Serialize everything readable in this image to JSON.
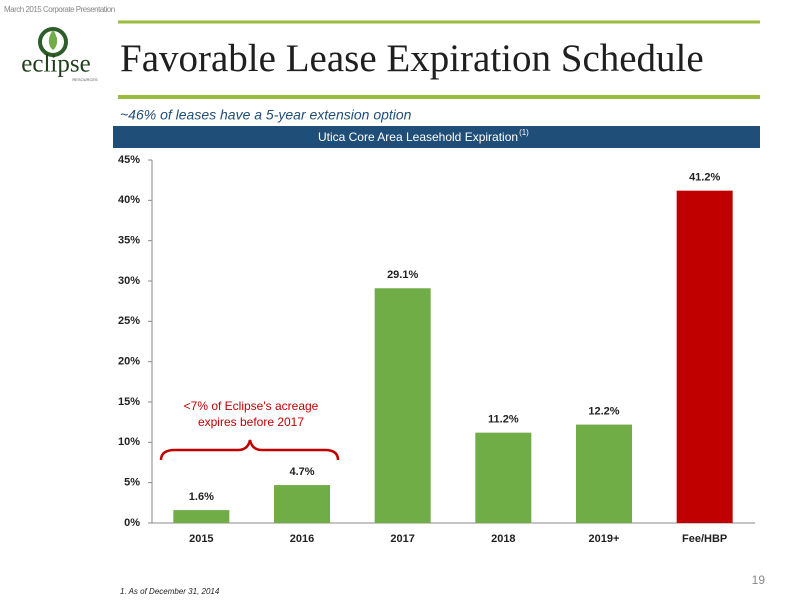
{
  "header": {
    "presentation": "March 2015 Corporate Presentation",
    "logo": "eclipse",
    "logo_sub": "RESOURCES",
    "title": "Favorable Lease Expiration Schedule",
    "subtitle": "~46% of leases have a 5-year extension option"
  },
  "chart_data": {
    "type": "bar",
    "title": "Utica Core Area Leasehold Expiration",
    "title_superscript": "(1)",
    "categories": [
      "2015",
      "2016",
      "2017",
      "2018",
      "2019+",
      "Fee/HBP"
    ],
    "values": [
      1.6,
      4.7,
      29.1,
      11.2,
      12.2,
      41.2
    ],
    "value_labels": [
      "1.6%",
      "4.7%",
      "29.1%",
      "11.2%",
      "12.2%",
      "41.2%"
    ],
    "colors": [
      "#70ad47",
      "#70ad47",
      "#70ad47",
      "#70ad47",
      "#70ad47",
      "#c00000"
    ],
    "ylim": [
      0,
      45
    ],
    "yticks": [
      {
        "value": 0,
        "label": "0%"
      },
      {
        "value": 5,
        "label": "5%"
      },
      {
        "value": 10,
        "label": "10%"
      },
      {
        "value": 15,
        "label": "15%"
      },
      {
        "value": 20,
        "label": "20%"
      },
      {
        "value": 25,
        "label": "25%"
      },
      {
        "value": 30,
        "label": "30%"
      },
      {
        "value": 35,
        "label": "35%"
      },
      {
        "value": 40,
        "label": "40%"
      },
      {
        "value": 45,
        "label": "45%"
      }
    ],
    "grid": false,
    "annotation": [
      "<7% of Eclipse's acreage",
      "expires before 2017"
    ]
  },
  "footer": {
    "footnote": "1. As of December 31, 2014",
    "page": "19"
  }
}
